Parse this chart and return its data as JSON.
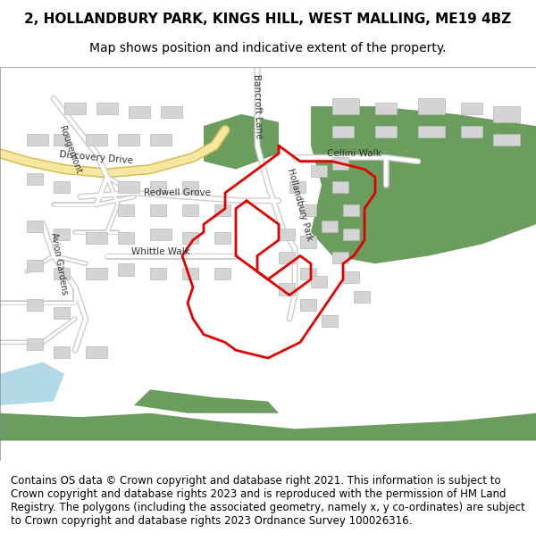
{
  "title_line1": "2, HOLLANDBURY PARK, KINGS HILL, WEST MALLING, ME19 4BZ",
  "title_line2": "Map shows position and indicative extent of the property.",
  "footer_text": "Contains OS data © Crown copyright and database right 2021. This information is subject to Crown copyright and database rights 2023 and is reproduced with the permission of HM Land Registry. The polygons (including the associated geometry, namely x, y co-ordinates) are subject to Crown copyright and database rights 2023 Ordnance Survey 100026316.",
  "map_bg": "#f5f5f5",
  "green_color": "#6b9e5e",
  "road_color": "#ffffff",
  "road_outline": "#cccccc",
  "yellow_road": "#f5e6a0",
  "building_color": "#d8d8d8",
  "building_outline": "#bbbbbb",
  "red_boundary": "#e00000",
  "water_color": "#b3d9e8",
  "title_fontsize": 11,
  "subtitle_fontsize": 10,
  "footer_fontsize": 8.5,
  "fig_width": 6.0,
  "fig_height": 6.25
}
